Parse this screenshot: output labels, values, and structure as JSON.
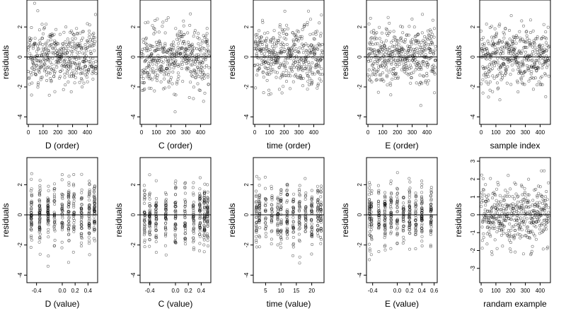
{
  "chart_data": [
    {
      "type": "scatter",
      "xlabel": "D (order)",
      "ylabel": "residuals",
      "xlim": [
        -10,
        470
      ],
      "ylim": [
        -4.5,
        3.8
      ],
      "xticks": [
        "0",
        "100",
        "200",
        "300",
        "400"
      ],
      "yticks": [
        "-4",
        "-2",
        "0",
        "2"
      ],
      "x_domain": "order",
      "y_sd": 1.4,
      "seed": 11,
      "reference_line_y": 0
    },
    {
      "type": "scatter",
      "xlabel": "C (order)",
      "ylabel": "residuals",
      "xlim": [
        -10,
        470
      ],
      "ylim": [
        -4.5,
        3.8
      ],
      "xticks": [
        "0",
        "100",
        "200",
        "300",
        "400"
      ],
      "yticks": [
        "-4",
        "-2",
        "0",
        "2"
      ],
      "x_domain": "order",
      "y_sd": 1.4,
      "seed": 23,
      "reference_line_y": 0
    },
    {
      "type": "scatter",
      "xlabel": "time (order)",
      "ylabel": "residuals",
      "xlim": [
        -10,
        470
      ],
      "ylim": [
        -4.5,
        3.8
      ],
      "xticks": [
        "0",
        "100",
        "200",
        "300",
        "400"
      ],
      "yticks": [
        "-4",
        "-2",
        "0",
        "2"
      ],
      "x_domain": "order",
      "y_sd": 1.4,
      "seed": 37,
      "reference_line_y": 0
    },
    {
      "type": "scatter",
      "xlabel": "E (order)",
      "ylabel": "residuals",
      "xlim": [
        -10,
        470
      ],
      "ylim": [
        -4.5,
        3.8
      ],
      "xticks": [
        "0",
        "100",
        "200",
        "300",
        "400"
      ],
      "yticks": [
        "-4",
        "-2",
        "0",
        "2"
      ],
      "x_domain": "order",
      "y_sd": 1.4,
      "seed": 41,
      "reference_line_y": 0
    },
    {
      "type": "scatter",
      "xlabel": "sample index",
      "ylabel": "residuals",
      "xlim": [
        -10,
        470
      ],
      "ylim": [
        -4.5,
        3.8
      ],
      "xticks": [
        "0",
        "100",
        "200",
        "300",
        "400"
      ],
      "yticks": [
        "-4",
        "-2",
        "0",
        "2"
      ],
      "x_domain": "order",
      "y_sd": 1.4,
      "seed": 53,
      "reference_line_y": 0
    },
    {
      "type": "scatter",
      "xlabel": "D (value)",
      "ylabel": "residuals",
      "xlim": [
        -0.55,
        0.55
      ],
      "ylim": [
        -4.5,
        3.8
      ],
      "xticks": [
        "-0.4",
        "0.0",
        "0.2",
        "0.4"
      ],
      "x_groups": [
        -0.48,
        -0.35,
        -0.22,
        -0.12,
        0.0,
        0.1,
        0.18,
        0.3,
        0.42,
        0.5
      ],
      "yticks": [
        "-4",
        "-2",
        "0",
        "2"
      ],
      "x_domain": "value",
      "y_sd": 1.4,
      "seed": 67,
      "reference_line_y": 0
    },
    {
      "type": "scatter",
      "xlabel": "C (value)",
      "ylabel": "residuals",
      "xlim": [
        -0.55,
        0.55
      ],
      "ylim": [
        -4.5,
        3.8
      ],
      "xticks": [
        "-0.4",
        "0.0",
        "0.2",
        "0.4"
      ],
      "x_groups": [
        -0.48,
        -0.4,
        -0.3,
        -0.15,
        0.0,
        0.15,
        0.28,
        0.38,
        0.45,
        0.5
      ],
      "yticks": [
        "-4",
        "-2",
        "0",
        "2"
      ],
      "x_domain": "value",
      "y_sd": 1.4,
      "seed": 79,
      "reference_line_y": 0
    },
    {
      "type": "scatter",
      "xlabel": "time (value)",
      "ylabel": "residuals",
      "xlim": [
        1,
        24
      ],
      "ylim": [
        -4.5,
        3.8
      ],
      "xticks": [
        "5",
        "10",
        "15",
        "20"
      ],
      "x_groups": [
        2,
        3,
        5,
        7,
        9,
        10,
        12,
        14,
        16,
        18,
        20,
        22,
        23
      ],
      "yticks": [
        "-4",
        "-2",
        "0",
        "2"
      ],
      "x_domain": "value",
      "y_sd": 1.4,
      "seed": 83,
      "reference_line_y": 0
    },
    {
      "type": "scatter",
      "xlabel": "E (value)",
      "ylabel": "residuals",
      "xlim": [
        -0.5,
        0.65
      ],
      "ylim": [
        -4.5,
        3.8
      ],
      "xticks": [
        "-0.4",
        "0.0",
        "0.2",
        "0.4",
        "0.6"
      ],
      "x_groups": [
        -0.45,
        -0.42,
        -0.3,
        -0.2,
        -0.1,
        0.0,
        0.1,
        0.2,
        0.3,
        0.4,
        0.55
      ],
      "yticks": [
        "-4",
        "-2",
        "0",
        "2"
      ],
      "x_domain": "value",
      "y_sd": 1.4,
      "seed": 97,
      "reference_line_y": 0
    },
    {
      "type": "scatter",
      "xlabel": "randam example",
      "ylabel": "residuals",
      "xlim": [
        -10,
        470
      ],
      "ylim": [
        -3.8,
        3.2
      ],
      "xticks": [
        "0",
        "100",
        "200",
        "300",
        "400"
      ],
      "yticks": [
        "-3",
        "-2",
        "-1",
        "0",
        "1",
        "2",
        "3"
      ],
      "x_domain": "order",
      "y_sd": 1.2,
      "seed": 101,
      "reference_line_y": 0
    }
  ]
}
